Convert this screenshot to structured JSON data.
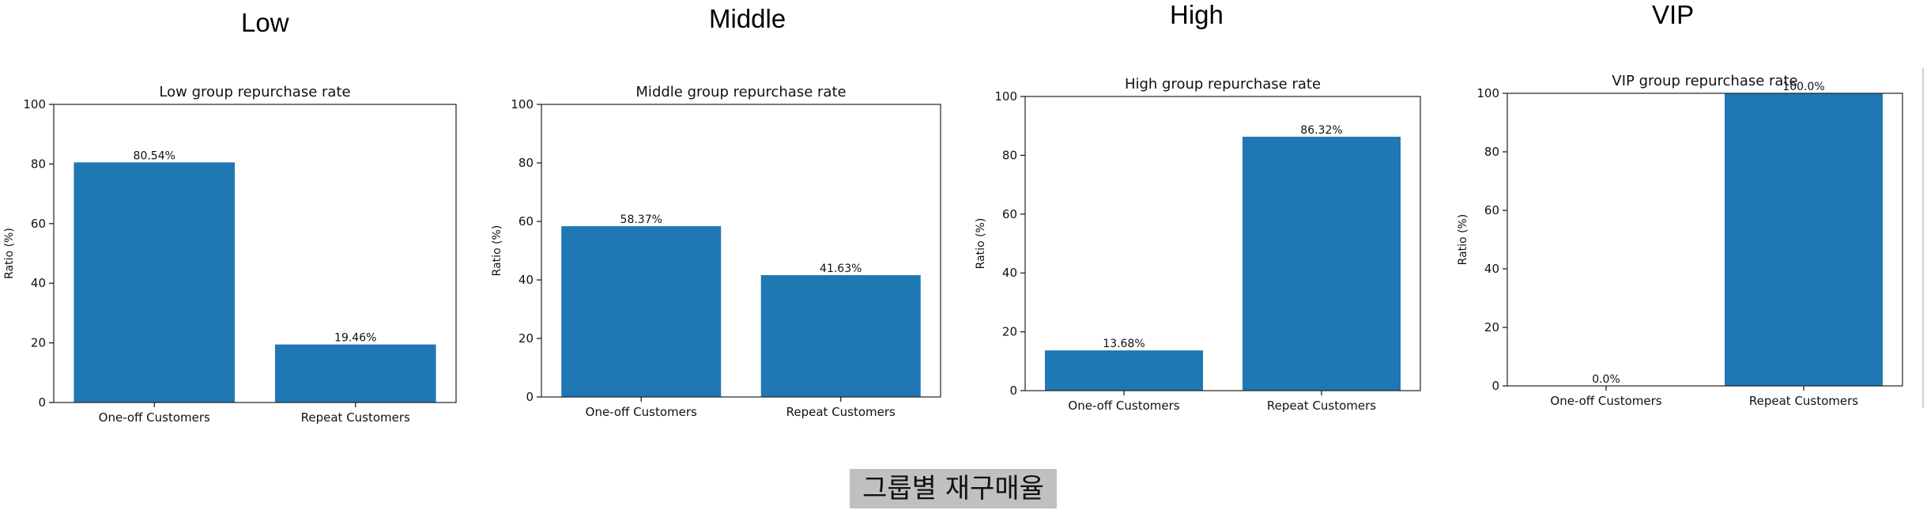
{
  "chart_data": [
    {
      "type": "bar",
      "group": "Low",
      "title": "Low group repurchase rate",
      "ylabel": "Ratio (%)",
      "categories": [
        "One-off Customers",
        "Repeat Customers"
      ],
      "values": [
        80.54,
        19.46
      ],
      "data_labels": [
        "80.54%",
        "19.46%"
      ],
      "ylim": [
        0,
        100
      ],
      "yticks": [
        "0",
        "20",
        "40",
        "60",
        "80",
        "100"
      ],
      "color": "#1f77b4",
      "grid": false
    },
    {
      "type": "bar",
      "group": "Middle",
      "title": "Middle group repurchase rate",
      "ylabel": "Ratio (%)",
      "categories": [
        "One-off Customers",
        "Repeat Customers"
      ],
      "values": [
        58.37,
        41.63
      ],
      "data_labels": [
        "58.37%",
        "41.63%"
      ],
      "ylim": [
        0,
        100
      ],
      "yticks": [
        "0",
        "20",
        "40",
        "60",
        "80",
        "100"
      ],
      "color": "#1f77b4",
      "grid": false
    },
    {
      "type": "bar",
      "group": "High",
      "title": "High group repurchase rate",
      "ylabel": "Ratio (%)",
      "categories": [
        "One-off Customers",
        "Repeat Customers"
      ],
      "values": [
        13.68,
        86.32
      ],
      "data_labels": [
        "13.68%",
        "86.32%"
      ],
      "ylim": [
        0,
        100
      ],
      "yticks": [
        "0",
        "20",
        "40",
        "60",
        "80",
        "100"
      ],
      "color": "#1f77b4",
      "grid": false
    },
    {
      "type": "bar",
      "group": "VIP",
      "title": "VIP group repurchase rate",
      "ylabel": "Ratio (%)",
      "categories": [
        "One-off Customers",
        "Repeat Customers"
      ],
      "values": [
        0.0,
        100.0
      ],
      "data_labels": [
        "0.0%",
        "100.0%"
      ],
      "ylim": [
        0,
        100
      ],
      "yticks": [
        "0",
        "20",
        "40",
        "60",
        "80",
        "100"
      ],
      "color": "#1f77b4",
      "grid": false
    }
  ],
  "caption": "그룹별 재구매율"
}
